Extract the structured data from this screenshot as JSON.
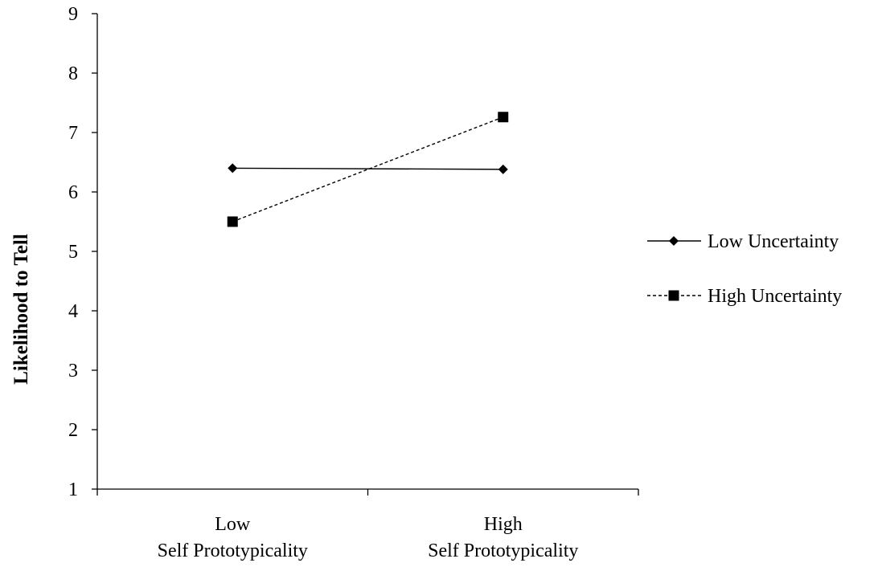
{
  "chart_data": {
    "type": "line",
    "title": "",
    "xlabel": "",
    "ylabel": "Likelihood to Tell",
    "ylim": [
      1,
      9
    ],
    "yticks": [
      "1",
      "2",
      "3",
      "4",
      "5",
      "6",
      "7",
      "8",
      "9"
    ],
    "categories": [
      [
        "Low",
        "Self Prototypicality"
      ],
      [
        "High",
        "Self Prototypicality"
      ]
    ],
    "grid": false,
    "legend_position": "right",
    "series": [
      {
        "name": "Low Uncertainty",
        "values": [
          6.4,
          6.38
        ],
        "marker": "diamond",
        "line_style": "solid",
        "color": "#000000"
      },
      {
        "name": "High Uncertainty",
        "values": [
          5.5,
          7.26
        ],
        "marker": "square",
        "line_style": "dashed",
        "color": "#000000"
      }
    ]
  }
}
